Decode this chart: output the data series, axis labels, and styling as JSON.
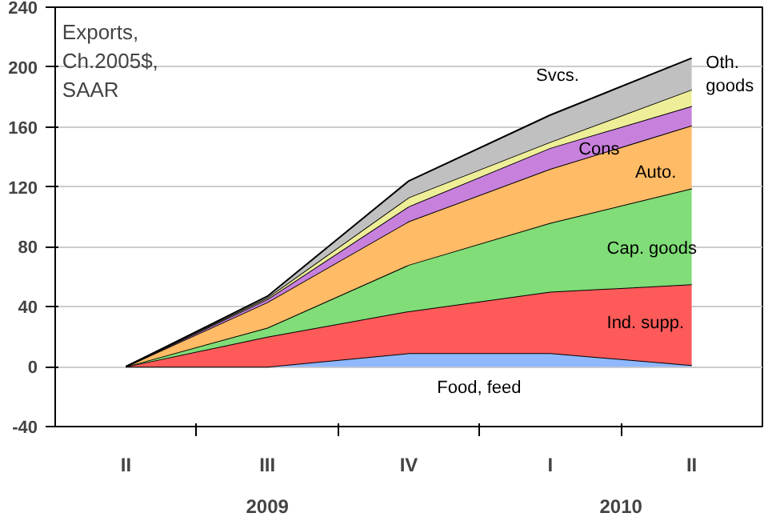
{
  "chart_data": {
    "type": "area",
    "stacked": true,
    "title": "Exports,\nCh.2005$,\nSAAR",
    "categories": [
      "II",
      "III",
      "IV",
      "I",
      "II"
    ],
    "series": [
      {
        "name": "Food, feed",
        "color": "#8fb8ff",
        "values": [
          0,
          0,
          9,
          9,
          1
        ]
      },
      {
        "name": "Ind. supp.",
        "color": "#ff5a5a",
        "values": [
          0,
          20,
          28,
          41,
          54
        ]
      },
      {
        "name": "Cap. goods",
        "color": "#80dd77",
        "values": [
          0,
          6,
          31,
          46,
          64
        ]
      },
      {
        "name": "Auto.",
        "color": "#ffbb66",
        "values": [
          0,
          17,
          29,
          36,
          42
        ]
      },
      {
        "name": "Cons",
        "color": "#c880dd",
        "values": [
          0,
          2,
          10,
          14,
          13
        ]
      },
      {
        "name": "Oth.\ngoods",
        "color": "#eeee99",
        "values": [
          0,
          1,
          6,
          4,
          11
        ]
      },
      {
        "name": "Svcs.",
        "color": "#c0c0c0",
        "values": [
          0,
          1,
          11,
          18,
          21
        ]
      }
    ],
    "annotations": [
      "2009",
      "2010"
    ],
    "ylim": [
      -40,
      240
    ],
    "yticks": [
      -40,
      0,
      40,
      80,
      120,
      160,
      200,
      240
    ],
    "grid": "y",
    "legend": false
  }
}
